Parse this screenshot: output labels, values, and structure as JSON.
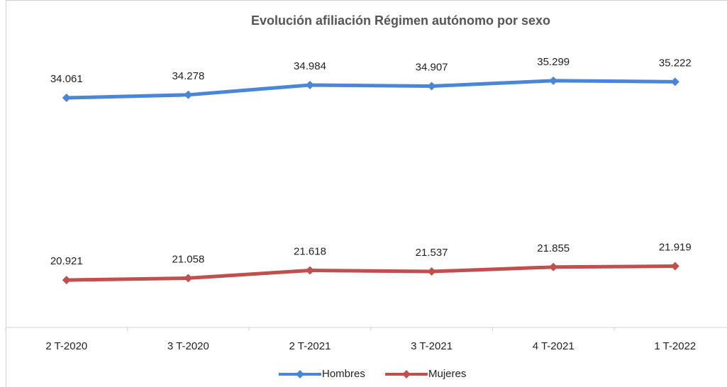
{
  "chart_data": {
    "type": "line",
    "title": "Evolución afiliación Régimen autónomo por sexo",
    "categories": [
      "2 T-2020",
      "3 T-2020",
      "2 T-2021",
      "3 T-2021",
      "4 T-2021",
      "1 T-2022"
    ],
    "series": [
      {
        "name": "Hombres",
        "color": "#4a86d8",
        "values": [
          34061,
          34278,
          34984,
          34907,
          35299,
          35222
        ],
        "value_labels": [
          "34.061",
          "34.278",
          "34.984",
          "34.907",
          "35.299",
          "35.222"
        ]
      },
      {
        "name": "Mujeres",
        "color": "#c0504d",
        "values": [
          20921,
          21058,
          21618,
          21537,
          21855,
          21919
        ],
        "value_labels": [
          "20.921",
          "21.058",
          "21.618",
          "21.537",
          "21.855",
          "21.919"
        ]
      }
    ],
    "ylim": [
      17500,
      38000
    ],
    "legend": "bottom"
  }
}
